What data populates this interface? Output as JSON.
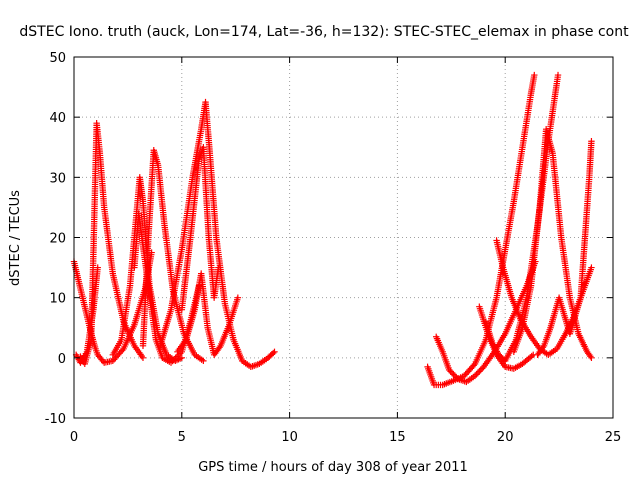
{
  "chart_data": {
    "type": "scatter",
    "title": "dSTEC Iono. truth (auck, Lon=174, Lat=-36, h=132): STEC-STEC_elemax in phase cont",
    "xlabel": "GPS time / hours of day 308 of year 2011",
    "ylabel": "dSTEC  / TECUs",
    "xlim": [
      0,
      25
    ],
    "ylim": [
      -10,
      50
    ],
    "x_ticks": [
      0,
      5,
      10,
      15,
      20,
      25
    ],
    "y_ticks": [
      -10,
      0,
      10,
      20,
      30,
      40,
      50
    ],
    "grid": true,
    "marker": "plus",
    "color": "#ff0000",
    "series": [
      {
        "x": [
          0.0,
          0.2,
          0.5,
          0.8,
          1.0,
          1.1,
          1.4,
          1.8,
          2.3,
          2.8,
          3.3,
          3.6
        ],
        "y": [
          16.0,
          13.0,
          8.5,
          4.0,
          1.5,
          0.5,
          -0.8,
          -0.5,
          1.5,
          5.5,
          11.5,
          17.5
        ]
      },
      {
        "x": [
          0.1,
          0.3,
          0.6,
          0.9,
          1.1
        ],
        "y": [
          0.5,
          -0.8,
          1.0,
          8.0,
          15.0
        ]
      },
      {
        "x": [
          0.3,
          0.5,
          0.8,
          1.05,
          1.2,
          1.4,
          1.8,
          2.3,
          2.8,
          3.2
        ],
        "y": [
          0.2,
          -1.0,
          3.0,
          39.0,
          34.0,
          25.0,
          14.0,
          6.0,
          2.0,
          0.0
        ]
      },
      {
        "x": [
          1.8,
          2.2,
          2.6,
          2.9,
          3.05,
          3.2,
          3.5,
          3.9,
          4.3,
          4.7,
          5.0
        ],
        "y": [
          0.5,
          3.0,
          12.0,
          24.0,
          30.0,
          26.0,
          12.0,
          4.0,
          0.5,
          -0.5,
          0.0
        ]
      },
      {
        "x": [
          2.8,
          3.0,
          3.3,
          3.6,
          3.8,
          4.1,
          4.5,
          5.0,
          5.4,
          5.8
        ],
        "y": [
          15.0,
          24.0,
          16.0,
          8.0,
          3.0,
          0.0,
          -0.8,
          1.0,
          6.0,
          12.0
        ]
      },
      {
        "x": [
          3.2,
          3.45,
          3.7,
          3.9,
          4.2,
          4.6,
          5.1,
          5.6,
          6.0
        ],
        "y": [
          2.0,
          20.0,
          34.5,
          32.0,
          22.0,
          11.0,
          4.0,
          0.5,
          -0.5
        ]
      },
      {
        "x": [
          4.0,
          4.5,
          5.0,
          5.5,
          5.9,
          6.1,
          6.3,
          6.6,
          7.0,
          7.4,
          7.8,
          8.2,
          8.6,
          9.0,
          9.3
        ],
        "y": [
          2.0,
          8.0,
          18.0,
          30.0,
          38.0,
          42.5,
          34.0,
          20.0,
          9.0,
          3.0,
          -0.5,
          -1.5,
          -1.0,
          0.0,
          1.0
        ]
      },
      {
        "x": [
          4.8,
          5.2,
          5.6,
          5.9,
          6.2,
          6.5,
          6.8,
          7.2,
          7.6
        ],
        "y": [
          1.0,
          3.0,
          8.0,
          14.0,
          5.0,
          0.5,
          2.0,
          5.5,
          10.0
        ]
      },
      {
        "x": [
          5.0,
          5.4,
          5.8,
          6.0,
          6.25,
          6.5,
          6.7
        ],
        "y": [
          8.0,
          20.0,
          33.0,
          35.0,
          20.0,
          10.0,
          15.0
        ]
      },
      {
        "x": [
          16.4,
          16.7,
          17.1,
          17.6,
          18.1,
          18.6,
          19.1,
          19.6,
          20.0,
          20.4,
          20.8,
          21.2,
          21.35
        ],
        "y": [
          -1.5,
          -4.5,
          -4.5,
          -3.8,
          -3.0,
          -1.0,
          3.0,
          10.0,
          18.0,
          26.0,
          35.0,
          44.0,
          47.0
        ]
      },
      {
        "x": [
          16.8,
          17.1,
          17.4,
          17.8,
          18.2,
          18.6,
          19.0,
          19.5,
          20.0,
          20.5,
          21.0,
          21.4
        ],
        "y": [
          3.5,
          1.0,
          -2.0,
          -3.5,
          -4.0,
          -3.0,
          -1.5,
          1.0,
          4.0,
          8.0,
          12.0,
          16.0
        ]
      },
      {
        "x": [
          18.8,
          19.2,
          19.6,
          20.0,
          20.4,
          20.8,
          21.3
        ],
        "y": [
          8.5,
          4.0,
          0.5,
          -1.5,
          -1.8,
          -1.0,
          0.5
        ]
      },
      {
        "x": [
          19.1,
          19.4,
          19.7,
          20.0,
          20.5,
          21.0,
          21.5,
          22.0,
          22.45
        ],
        "y": [
          6.0,
          2.5,
          0.5,
          -0.5,
          3.0,
          10.0,
          22.0,
          36.0,
          47.0
        ]
      },
      {
        "x": [
          19.6,
          19.9,
          20.3,
          20.7,
          21.2,
          21.6,
          22.0,
          22.4,
          22.8,
          23.2,
          23.6,
          24.0
        ],
        "y": [
          19.5,
          15.0,
          10.0,
          6.5,
          3.5,
          1.5,
          0.5,
          1.5,
          4.0,
          7.0,
          11.0,
          15.0
        ]
      },
      {
        "x": [
          20.4,
          20.8,
          21.2,
          21.6,
          21.9,
          22.2,
          22.6,
          23.0,
          23.4,
          23.8,
          24.0
        ],
        "y": [
          1.0,
          5.0,
          12.0,
          25.0,
          38.0,
          34.0,
          20.0,
          10.0,
          4.0,
          1.0,
          0.0
        ]
      },
      {
        "x": [
          21.5,
          21.8,
          22.1,
          22.5,
          23.0,
          23.5,
          23.9,
          24.0
        ],
        "y": [
          0.5,
          2.0,
          5.0,
          10.0,
          4.0,
          10.0,
          30.0,
          36.0
        ]
      }
    ]
  }
}
